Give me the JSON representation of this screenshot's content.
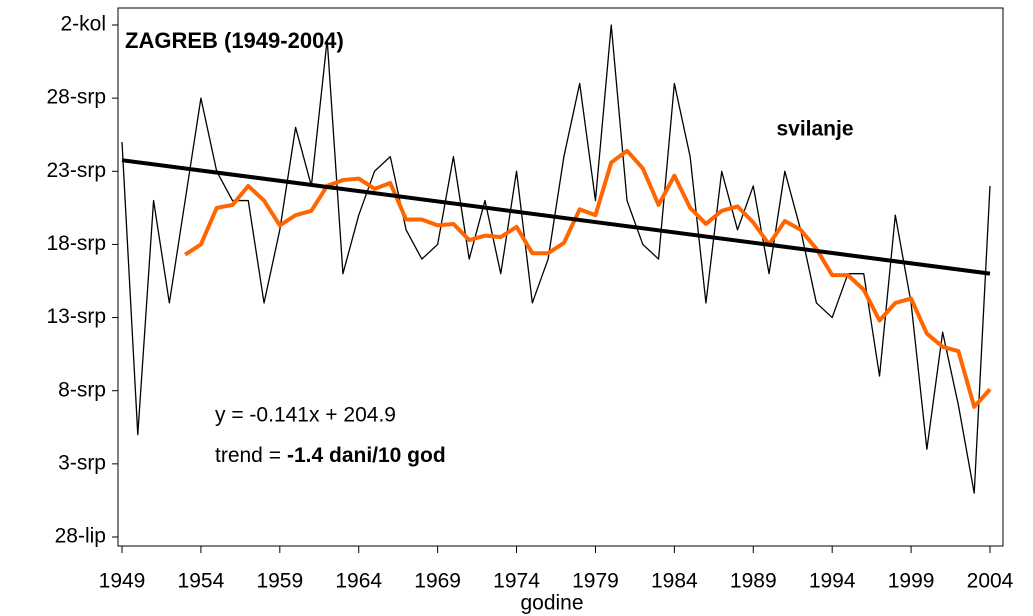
{
  "chart_data": {
    "type": "line",
    "title": "ZAGREB (1949-2004)",
    "series_label": "svilanje",
    "equation": "y = -0.141x + 204.9",
    "trend_label": "trend =",
    "trend_value": "-1.4 dani/10 god",
    "x_label": "godine",
    "x": [
      1949,
      1950,
      1951,
      1952,
      1953,
      1954,
      1955,
      1956,
      1957,
      1958,
      1959,
      1960,
      1961,
      1962,
      1963,
      1964,
      1965,
      1966,
      1967,
      1968,
      1969,
      1970,
      1971,
      1972,
      1973,
      1974,
      1975,
      1976,
      1977,
      1978,
      1979,
      1980,
      1981,
      1982,
      1983,
      1984,
      1985,
      1986,
      1987,
      1988,
      1989,
      1990,
      1991,
      1992,
      1993,
      1994,
      1995,
      1996,
      1997,
      1998,
      1999,
      2000,
      2001,
      2002,
      2003,
      2004
    ],
    "series": [
      {
        "color": "#000000",
        "values": [
          206,
          186,
          202,
          195,
          202,
          209,
          204,
          202,
          202,
          195,
          200,
          207,
          203,
          213,
          197,
          201,
          204,
          205,
          200,
          198,
          199,
          205,
          198,
          202,
          197,
          204,
          195,
          198,
          205,
          210,
          202,
          214,
          202,
          199,
          198,
          210,
          205,
          195,
          204,
          200,
          203,
          197,
          204,
          200,
          195,
          194,
          197,
          197,
          190,
          201,
          195,
          185,
          193,
          188,
          182,
          203
        ]
      },
      {
        "color": "#ff6600",
        "values": [
          null,
          null,
          null,
          null,
          198.3,
          199,
          201.5,
          201.7,
          203,
          202,
          200.3,
          201,
          201.3,
          203,
          203.4,
          203.5,
          202.8,
          203.2,
          200.7,
          200.7,
          200.3,
          200.4,
          199.3,
          199.6,
          199.5,
          200.2,
          198.4,
          198.4,
          199.1,
          201.4,
          201,
          204.6,
          205.4,
          204.2,
          201.7,
          203.7,
          201.5,
          200.4,
          201.3,
          201.6,
          200.5,
          199,
          200.6,
          200,
          198.7,
          196.9,
          196.9,
          195.9,
          193.8,
          195,
          195.3,
          192.9,
          192,
          191.7,
          187.9,
          189.1
        ]
      }
    ],
    "trendline": {
      "slope": -0.141,
      "intercept": 204.9,
      "color": "#000000"
    },
    "xlim": [
      1949,
      2004
    ],
    "xticks": [
      1949,
      1954,
      1959,
      1964,
      1969,
      1974,
      1979,
      1984,
      1989,
      1994,
      1999,
      2004
    ],
    "ylim": [
      179,
      214
    ],
    "yticks": [
      {
        "value": 179,
        "label": "28-lip"
      },
      {
        "value": 184,
        "label": "3-srp"
      },
      {
        "value": 189,
        "label": "8-srp"
      },
      {
        "value": 194,
        "label": "13-srp"
      },
      {
        "value": 199,
        "label": "18-srp"
      },
      {
        "value": 204,
        "label": "23-srp"
      },
      {
        "value": 209,
        "label": "28-srp"
      },
      {
        "value": 214,
        "label": "2-kol"
      }
    ]
  }
}
